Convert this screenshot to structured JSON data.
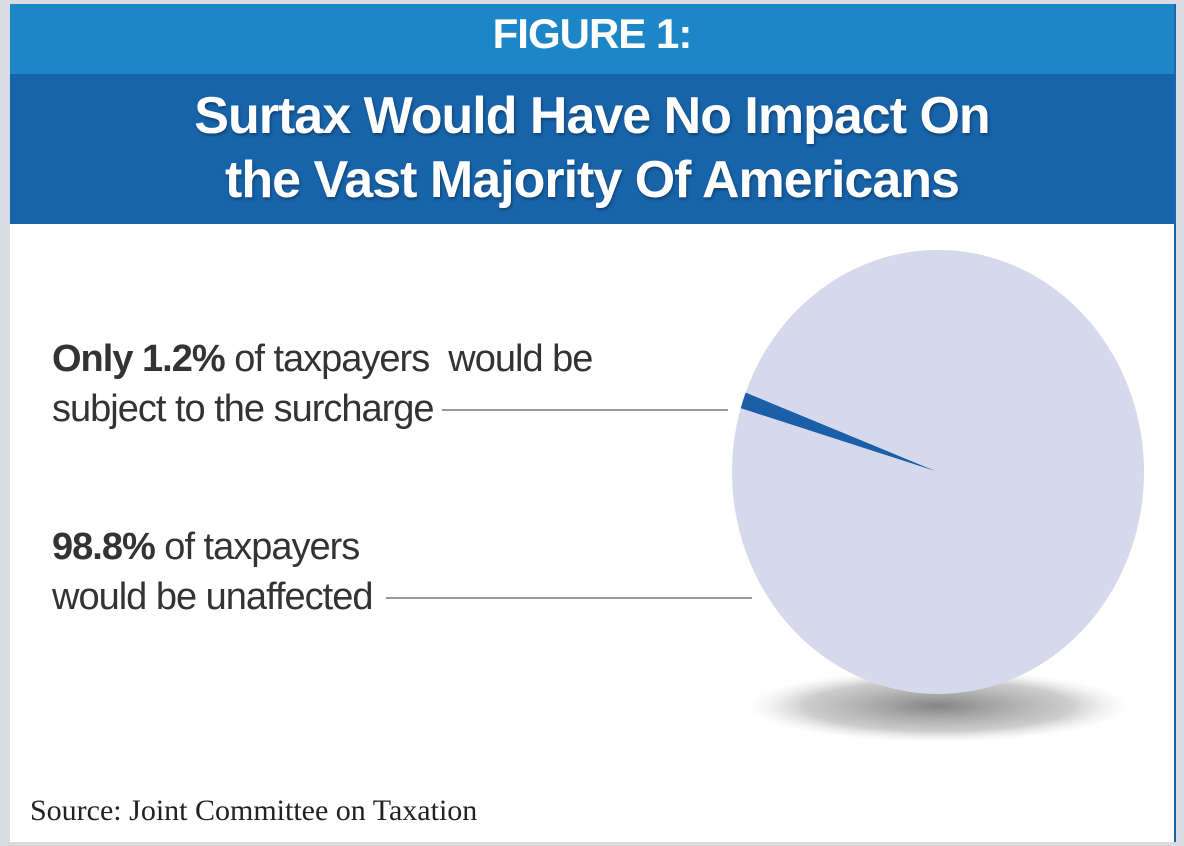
{
  "figure_label": "FIGURE 1:",
  "title_lines": [
    "Surtax Would Have No Impact On",
    "the Vast Majority Of Americans"
  ],
  "annotations": [
    {
      "bold": "Only 1.2%",
      "rest": " of taxpayers  would be",
      "line2": "subject to the surcharge"
    },
    {
      "bold": "98.8%",
      "rest": " of taxpayers",
      "line2": "would be unaffected"
    }
  ],
  "source": "Source: Joint Committee on Taxation",
  "colors": {
    "figure_band": "#1c86c6",
    "title_band": "#1864ab",
    "affected_slice": "#1a5fa8",
    "unaffected_slice": "#d6d9eb",
    "frame": "#1a67b0"
  },
  "chart_data": {
    "type": "pie",
    "title": "Surtax Would Have No Impact On the Vast Majority Of Americans",
    "slices": [
      {
        "label": "Only 1.2% of taxpayers would be subject to the surcharge",
        "value": 1.2,
        "color": "#1a5fa8"
      },
      {
        "label": "98.8% of taxpayers would be unaffected",
        "value": 98.8,
        "color": "#d6d9eb"
      }
    ],
    "unit": "%",
    "source": "Source: Joint Committee on Taxation"
  }
}
